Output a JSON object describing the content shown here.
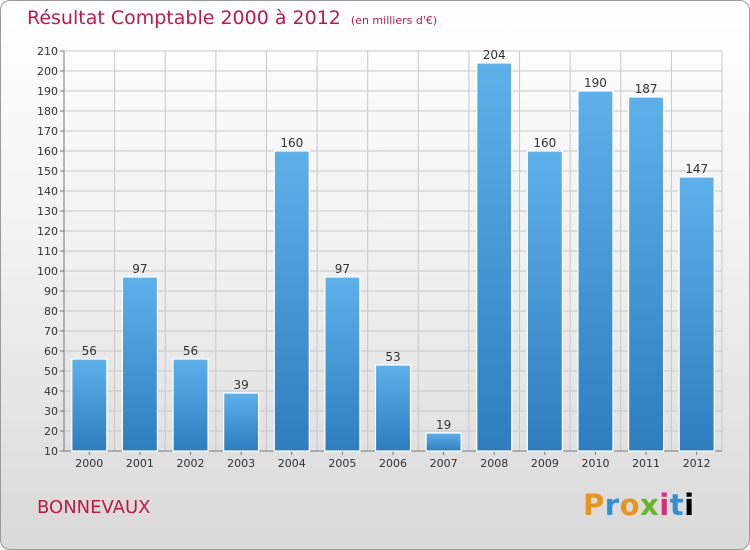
{
  "title": {
    "main": "Résultat Comptable 2000 à 2012",
    "unit": "(en milliers d'€)"
  },
  "place_name": "BONNEVAUX",
  "logo": {
    "text": "Proxiti"
  },
  "colors": {
    "title": "#c0184c",
    "bar_light": "#5eb0ea",
    "bar_dark": "#2e7dbf",
    "grid": "#c8c8c8"
  },
  "chart_data": {
    "type": "bar",
    "title": "Résultat Comptable 2000 à 2012",
    "xlabel": "",
    "ylabel": "en milliers d'€",
    "categories": [
      "2000",
      "2001",
      "2002",
      "2003",
      "2004",
      "2005",
      "2006",
      "2007",
      "2008",
      "2009",
      "2010",
      "2011",
      "2012"
    ],
    "values": [
      56,
      97,
      56,
      39,
      160,
      97,
      53,
      19,
      204,
      160,
      190,
      187,
      147
    ],
    "ylim": [
      10,
      210
    ],
    "yticks": [
      10,
      20,
      30,
      40,
      50,
      60,
      70,
      80,
      90,
      100,
      110,
      120,
      130,
      140,
      150,
      160,
      170,
      180,
      190,
      200,
      210
    ],
    "grid": true
  }
}
